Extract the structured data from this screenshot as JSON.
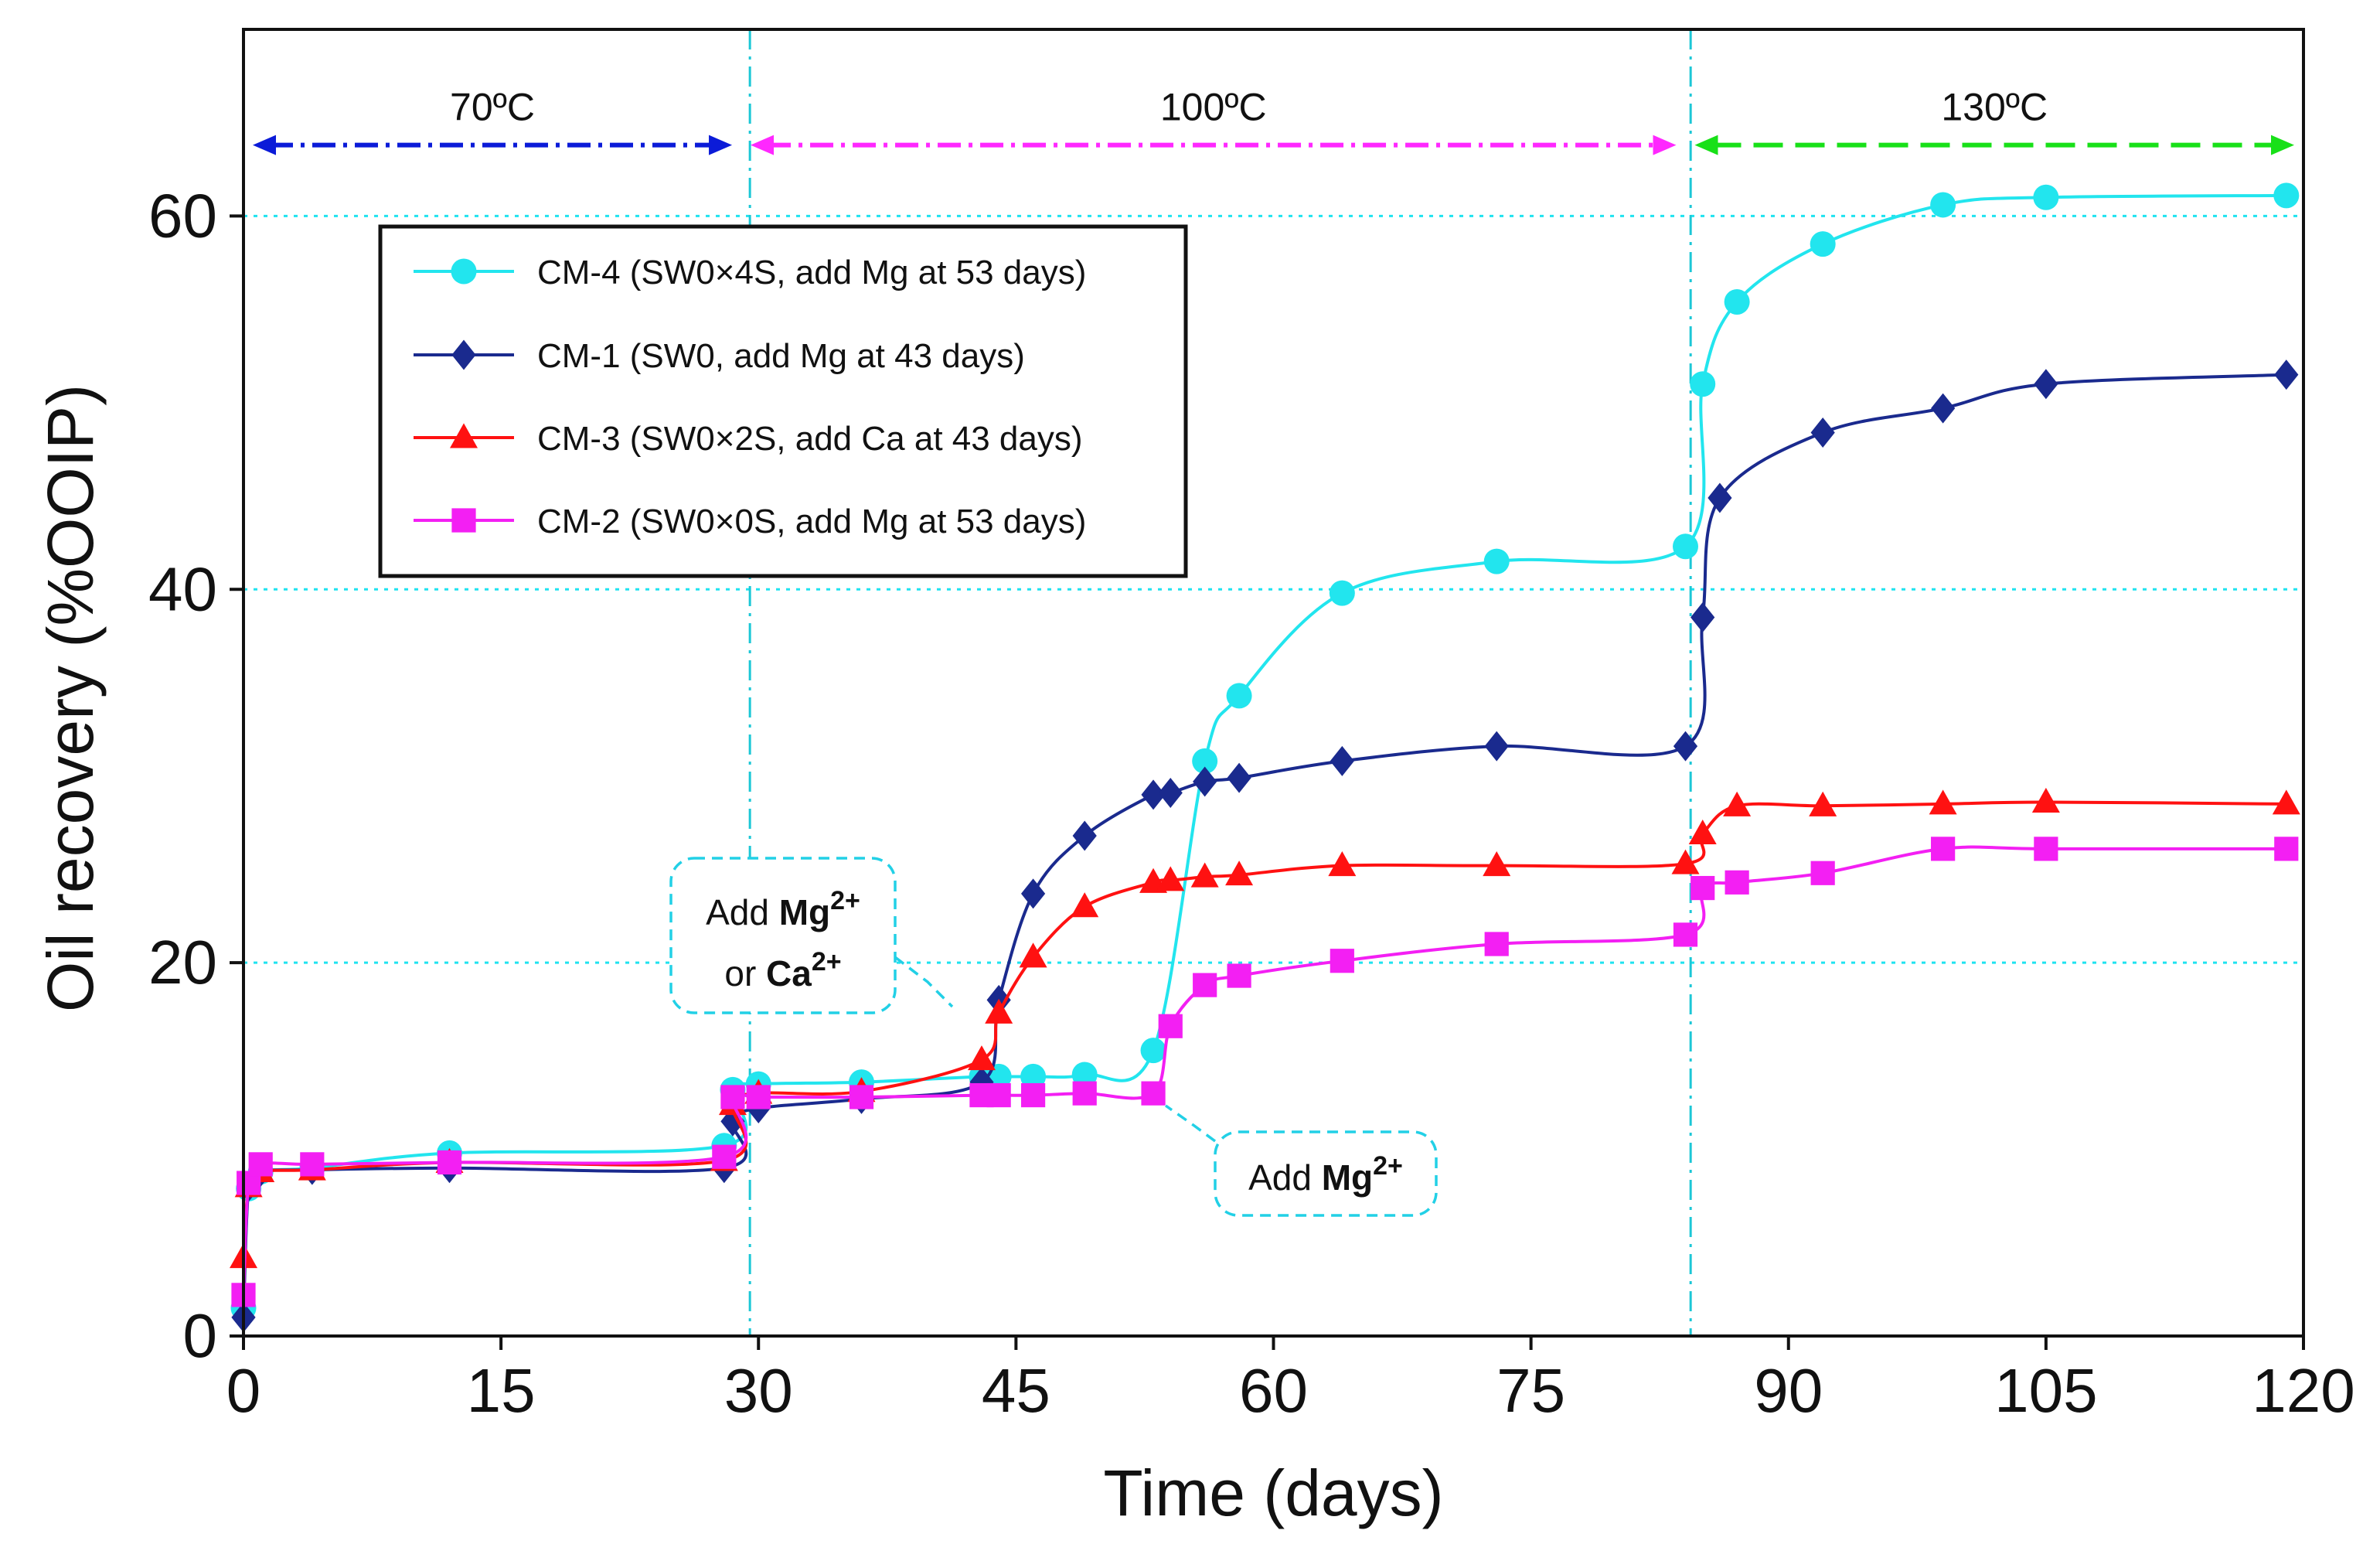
{
  "chart_data": {
    "type": "line",
    "xlabel": "Time (days)",
    "ylabel": "Oil recovery (%OOIP)",
    "xlim": [
      0,
      120
    ],
    "ylim": [
      0,
      70
    ],
    "xticks": [
      0,
      15,
      30,
      45,
      60,
      75,
      90,
      105,
      120
    ],
    "yticks": [
      0,
      20,
      40,
      60
    ],
    "grid": "dotted cyan at y=20,40,60",
    "temperature_stages": [
      {
        "label": "70ºC",
        "x_start": 0,
        "x_end": 29,
        "color": "#0b1bd8",
        "style": "dashdot"
      },
      {
        "label": "100ºC",
        "x_start": 29,
        "x_end": 84,
        "color": "#ff28ff",
        "style": "dashdot"
      },
      {
        "label": "130ºC",
        "x_start": 84,
        "x_end": 120,
        "color": "#18e018",
        "style": "dashed"
      }
    ],
    "stage_dividers": [
      29.5,
      84.3
    ],
    "stage_arrow_y": 63.8,
    "annotations": [
      {
        "id": "mg-or-ca",
        "line1_pre": "Add ",
        "line1_bold": "Mg",
        "line1_sup": "2+",
        "line2_pre": "or ",
        "line2_bold": "Ca",
        "line2_sup": "2+"
      },
      {
        "id": "mg",
        "line1_pre": "Add ",
        "line1_bold": "Mg",
        "line1_sup": "2+"
      }
    ],
    "legend_position": "upper-left",
    "series": [
      {
        "name": "CM-4 (SW0×4S, add Mg at 53 days)",
        "color": "#22e5ee",
        "marker": "circle",
        "x": [
          0,
          0.3,
          1,
          4,
          12,
          28,
          28.5,
          30,
          36,
          43,
          44,
          46,
          49,
          53,
          56,
          58,
          64,
          73,
          84,
          85,
          87,
          92,
          99,
          105,
          119
        ],
        "y": [
          1.5,
          7.9,
          8.8,
          9.0,
          9.8,
          10.2,
          13.2,
          13.5,
          13.6,
          13.9,
          13.9,
          13.9,
          14.0,
          15.3,
          30.8,
          34.3,
          39.8,
          41.5,
          42.3,
          51.0,
          55.4,
          58.5,
          60.6,
          61.0,
          61.1
        ]
      },
      {
        "name": "CM-1 (SW0, add Mg at 43 days)",
        "color": "#1a2a8e",
        "marker": "diamond",
        "x": [
          0,
          0.3,
          1,
          4,
          12,
          28,
          28.5,
          30,
          36,
          43,
          44,
          46,
          49,
          53,
          54,
          56,
          58,
          64,
          73,
          84,
          85,
          86,
          92,
          99,
          105,
          119
        ],
        "y": [
          1.0,
          8.0,
          8.8,
          8.9,
          9.0,
          9.0,
          11.5,
          12.2,
          12.7,
          13.6,
          18.0,
          23.7,
          26.8,
          29.0,
          29.1,
          29.7,
          29.9,
          30.8,
          31.6,
          31.6,
          38.5,
          44.9,
          48.4,
          49.7,
          51.0,
          51.5
        ]
      },
      {
        "name": "CM-3 (SW0×2S, add Ca at 43 days)",
        "color": "#ff1111",
        "marker": "triangle",
        "x": [
          0,
          0.3,
          1,
          4,
          12,
          28,
          28.5,
          30,
          36,
          43,
          44,
          46,
          49,
          53,
          54,
          56,
          58,
          64,
          73,
          84,
          85,
          87,
          92,
          99,
          105,
          119
        ],
        "y": [
          4.2,
          8.0,
          8.8,
          8.9,
          9.3,
          9.4,
          12.4,
          13.0,
          13.1,
          14.8,
          17.3,
          20.3,
          23.0,
          24.3,
          24.4,
          24.6,
          24.7,
          25.2,
          25.2,
          25.3,
          26.9,
          28.4,
          28.4,
          28.5,
          28.6,
          28.5
        ]
      },
      {
        "name": "CM-2 (SW0×0S, add Mg at 53 days)",
        "color": "#f31ff3",
        "marker": "square",
        "x": [
          0,
          0.3,
          1,
          4,
          12,
          28,
          28.5,
          30,
          36,
          43,
          44,
          46,
          49,
          53,
          54,
          56,
          58,
          64,
          73,
          84,
          85,
          87,
          92,
          99,
          105,
          119
        ],
        "y": [
          2.2,
          8.2,
          9.2,
          9.2,
          9.3,
          9.6,
          12.8,
          12.8,
          12.8,
          12.9,
          12.9,
          12.9,
          13.0,
          13.0,
          16.6,
          18.8,
          19.3,
          20.1,
          21.0,
          21.5,
          24.0,
          24.3,
          24.8,
          26.1,
          26.1,
          26.1
        ]
      }
    ]
  }
}
